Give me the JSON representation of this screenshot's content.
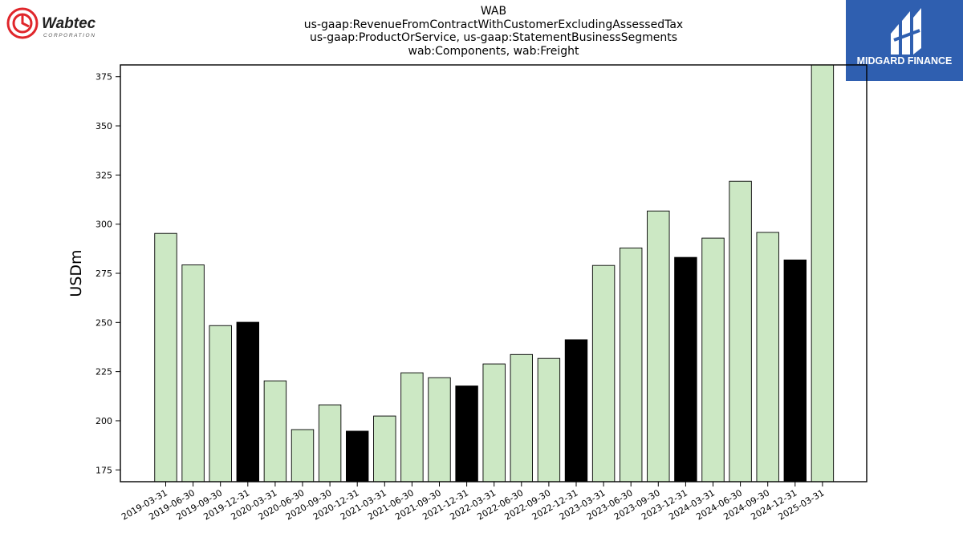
{
  "header": {
    "company_logo": {
      "name": "Wabtec",
      "subtitle": "CORPORATION",
      "accent": "#e0262b"
    },
    "brand_logo": {
      "name": "MIDGARD FINANCE",
      "background": "#2f5fb0"
    }
  },
  "chart_data": {
    "type": "bar",
    "title": "WAB",
    "subtitle_lines": [
      "us-gaap:RevenueFromContractWithCustomerExcludingAssessedTax",
      "us-gaap:ProductOrService, us-gaap:StatementBusinessSegments",
      "wab:Components, wab:Freight"
    ],
    "xlabel": "",
    "ylabel": "USDm",
    "ylim": [
      169,
      381
    ],
    "yticks": [
      175,
      200,
      225,
      250,
      275,
      300,
      325,
      350,
      375
    ],
    "grid": false,
    "categories": [
      "2019-03-31",
      "2019-06-30",
      "2019-09-30",
      "2019-12-31",
      "2020-03-31",
      "2020-06-30",
      "2020-09-30",
      "2020-12-31",
      "2021-03-31",
      "2021-06-30",
      "2021-09-30",
      "2021-12-31",
      "2022-03-31",
      "2022-06-30",
      "2022-09-30",
      "2022-12-31",
      "2023-03-31",
      "2023-06-30",
      "2023-09-30",
      "2023-12-31",
      "2024-03-31",
      "2024-06-30",
      "2024-09-30",
      "2024-12-31",
      "2025-03-31"
    ],
    "values": [
      295.3,
      279.3,
      248.4,
      250.1,
      220.3,
      195.5,
      208.1,
      194.7,
      202.4,
      224.4,
      221.9,
      217.7,
      228.9,
      233.7,
      231.7,
      241.2,
      279.0,
      287.9,
      306.7,
      283.1,
      292.9,
      321.8,
      295.8,
      281.8,
      381.0
    ],
    "bar_types": [
      "q",
      "q",
      "q",
      "fy",
      "q",
      "q",
      "q",
      "fy",
      "q",
      "q",
      "q",
      "fy",
      "q",
      "q",
      "q",
      "fy",
      "q",
      "q",
      "q",
      "fy",
      "q",
      "q",
      "q",
      "fy",
      "q"
    ],
    "colors": {
      "quarter": "#cce8c4",
      "year_end": "#000000",
      "edge": "#000000"
    }
  }
}
